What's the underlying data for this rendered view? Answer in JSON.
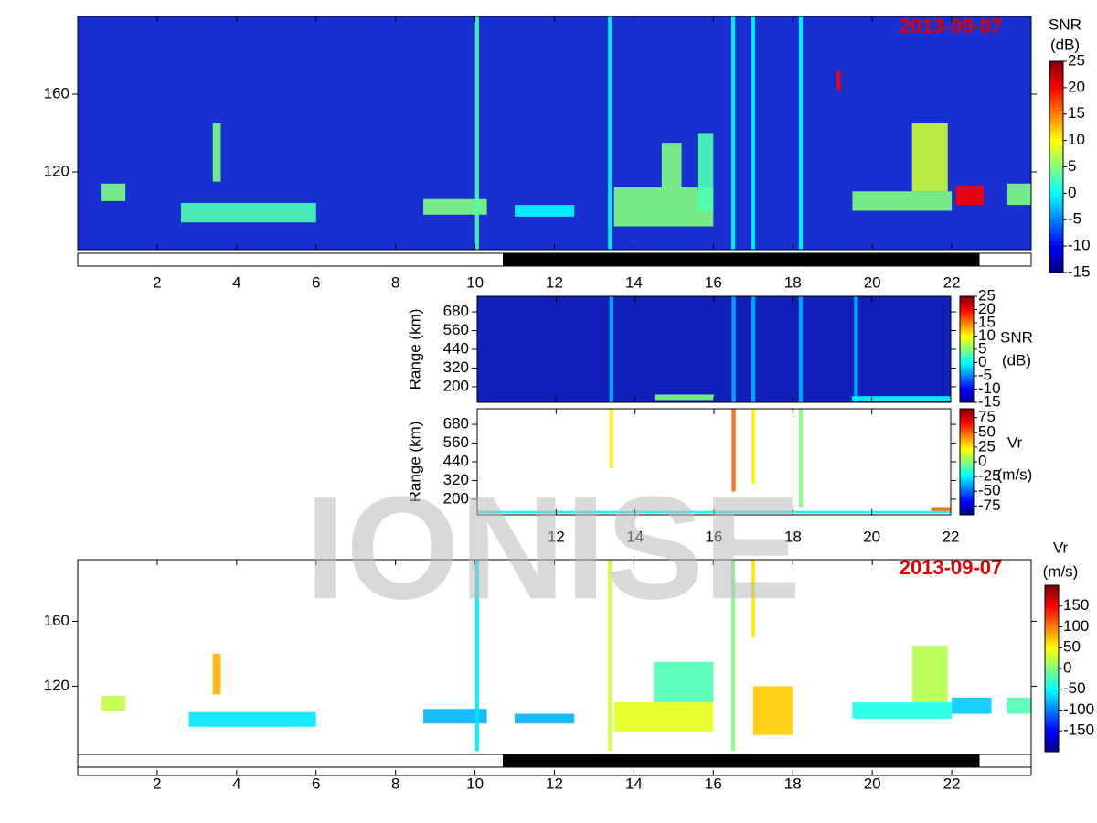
{
  "chart_data": [
    {
      "type": "heatmap",
      "date": "2013-09-07",
      "colormap": "jet",
      "background": "#1a2fd0",
      "xlim": [
        0,
        24
      ],
      "xticks": [
        2,
        4,
        6,
        8,
        10,
        12,
        14,
        16,
        18,
        20,
        22
      ],
      "xtick_labels": true,
      "ylim": [
        80,
        200
      ],
      "yticks": [
        120,
        160
      ],
      "night": [
        10.7,
        22.7
      ],
      "colorbar": {
        "label": [
          "SNR",
          "(dB)"
        ],
        "lim": [
          -15,
          25
        ],
        "ticks": [
          -15,
          -10,
          -5,
          0,
          5,
          10,
          15,
          20,
          25
        ]
      },
      "echoes": [
        {
          "x": [
            0.6,
            1.2
          ],
          "y": [
            105,
            114
          ],
          "value": 5
        },
        {
          "x": [
            2.6,
            6.0
          ],
          "y": [
            94,
            104
          ],
          "value": 3
        },
        {
          "x": [
            3.4,
            3.6
          ],
          "y": [
            115,
            145
          ],
          "value": 5
        },
        {
          "x": [
            8.7,
            10.3
          ],
          "y": [
            98,
            106
          ],
          "value": 5
        },
        {
          "x": [
            10.0,
            10.1
          ],
          "y": [
            80,
            200
          ],
          "value": 3
        },
        {
          "x": [
            11.0,
            12.5
          ],
          "y": [
            97,
            103
          ],
          "value": 0
        },
        {
          "x": [
            13.35,
            13.45
          ],
          "y": [
            80,
            200
          ],
          "value": 0
        },
        {
          "x": [
            13.5,
            16.0
          ],
          "y": [
            92,
            112
          ],
          "value": 5
        },
        {
          "x": [
            14.7,
            15.2
          ],
          "y": [
            112,
            135
          ],
          "value": 5
        },
        {
          "x": [
            15.6,
            16.0
          ],
          "y": [
            100,
            140
          ],
          "value": 3
        },
        {
          "x": [
            16.45,
            16.55
          ],
          "y": [
            80,
            200
          ],
          "value": 0
        },
        {
          "x": [
            16.95,
            17.05
          ],
          "y": [
            80,
            200
          ],
          "value": 0
        },
        {
          "x": [
            18.15,
            18.25
          ],
          "y": [
            80,
            200
          ],
          "value": 0
        },
        {
          "x": [
            19.1,
            19.2
          ],
          "y": [
            162,
            172
          ],
          "value": 20
        },
        {
          "x": [
            19.5,
            22.0
          ],
          "y": [
            100,
            110
          ],
          "value": 5
        },
        {
          "x": [
            21.0,
            21.9
          ],
          "y": [
            110,
            145
          ],
          "value": 8
        },
        {
          "x": [
            22.1,
            22.8
          ],
          "y": [
            103,
            113
          ],
          "value": 20
        },
        {
          "x": [
            23.4,
            24.0
          ],
          "y": [
            103,
            114
          ],
          "value": 5
        }
      ]
    },
    {
      "type": "heatmap",
      "colormap": "jet",
      "background": "#1020b8",
      "ylabel": "Range (km)",
      "xlim": [
        10,
        22
      ],
      "xticks": [
        12,
        14,
        16,
        18,
        20,
        22
      ],
      "xtick_labels": false,
      "ylim": [
        100,
        780
      ],
      "yticks": [
        200,
        320,
        440,
        560,
        680
      ],
      "colorbar": {
        "label": [
          "SNR",
          "(dB)"
        ],
        "lim": [
          -15,
          25
        ],
        "ticks": [
          -15,
          -10,
          -5,
          0,
          5,
          10,
          15,
          20,
          25
        ]
      },
      "echoes": [
        {
          "x": [
            13.35,
            13.45
          ],
          "y": [
            100,
            780
          ],
          "value": -3
        },
        {
          "x": [
            14.5,
            16.0
          ],
          "y": [
            115,
            150
          ],
          "value": 5
        },
        {
          "x": [
            16.45,
            16.55
          ],
          "y": [
            100,
            780
          ],
          "value": -3
        },
        {
          "x": [
            16.95,
            17.05
          ],
          "y": [
            100,
            780
          ],
          "value": -3
        },
        {
          "x": [
            18.15,
            18.25
          ],
          "y": [
            100,
            780
          ],
          "value": -3
        },
        {
          "x": [
            19.55,
            19.65
          ],
          "y": [
            100,
            780
          ],
          "value": -3
        },
        {
          "x": [
            19.5,
            22.0
          ],
          "y": [
            110,
            140
          ],
          "value": 0
        }
      ]
    },
    {
      "type": "heatmap",
      "colormap": "jet",
      "background": "#ffffff",
      "ylabel": "Range (km)",
      "xlim": [
        10,
        22
      ],
      "xticks": [
        12,
        14,
        16,
        18,
        20,
        22
      ],
      "xtick_labels": true,
      "ylim": [
        100,
        780
      ],
      "yticks": [
        200,
        320,
        440,
        560,
        680
      ],
      "colorbar": {
        "label": [
          "Vr",
          "(m/s)"
        ],
        "lim": [
          -90,
          90
        ],
        "ticks": [
          -75,
          -50,
          -25,
          0,
          25,
          50,
          75
        ]
      },
      "echoes": [
        {
          "x": [
            10.0,
            22.0
          ],
          "y": [
            110,
            125
          ],
          "value": -25
        },
        {
          "x": [
            13.35,
            13.45
          ],
          "y": [
            400,
            780
          ],
          "value": 25
        },
        {
          "x": [
            16.45,
            16.55
          ],
          "y": [
            250,
            780
          ],
          "value": 50
        },
        {
          "x": [
            16.95,
            17.05
          ],
          "y": [
            300,
            780
          ],
          "value": 25
        },
        {
          "x": [
            18.15,
            18.25
          ],
          "y": [
            150,
            780
          ],
          "value": 0
        },
        {
          "x": [
            21.5,
            22.0
          ],
          "y": [
            125,
            150
          ],
          "value": 50
        }
      ]
    },
    {
      "type": "heatmap",
      "date": "2013-09-07",
      "colormap": "jet",
      "background": "#ffffff",
      "xlim": [
        0,
        24
      ],
      "xticks": [
        2,
        4,
        6,
        8,
        10,
        12,
        14,
        16,
        18,
        20,
        22
      ],
      "xtick_labels": true,
      "ylim": [
        65,
        198
      ],
      "yticks": [
        120,
        160
      ],
      "night": [
        10.7,
        22.7
      ],
      "colorbar": {
        "label": [
          "Vr",
          "(m/s)"
        ],
        "lim": [
          -200,
          200
        ],
        "ticks": [
          -150,
          -100,
          -50,
          0,
          50,
          100,
          150
        ]
      },
      "echoes": [
        {
          "x": [
            0.6,
            1.2
          ],
          "y": [
            105,
            114
          ],
          "value": 25
        },
        {
          "x": [
            2.8,
            6.0
          ],
          "y": [
            95,
            104
          ],
          "value": -60
        },
        {
          "x": [
            3.4,
            3.6
          ],
          "y": [
            115,
            140
          ],
          "value": 80
        },
        {
          "x": [
            8.7,
            10.3
          ],
          "y": [
            97,
            106
          ],
          "value": -80
        },
        {
          "x": [
            10.0,
            10.1
          ],
          "y": [
            80,
            198
          ],
          "value": -60
        },
        {
          "x": [
            11.0,
            12.5
          ],
          "y": [
            97,
            103
          ],
          "value": -80
        },
        {
          "x": [
            13.35,
            13.45
          ],
          "y": [
            80,
            198
          ],
          "value": 30
        },
        {
          "x": [
            13.5,
            16.0
          ],
          "y": [
            92,
            110
          ],
          "value": 40
        },
        {
          "x": [
            14.5,
            16.0
          ],
          "y": [
            110,
            135
          ],
          "value": -20
        },
        {
          "x": [
            16.45,
            16.55
          ],
          "y": [
            80,
            198
          ],
          "value": 0
        },
        {
          "x": [
            16.95,
            17.05
          ],
          "y": [
            150,
            198
          ],
          "value": 60
        },
        {
          "x": [
            17.0,
            18.0
          ],
          "y": [
            90,
            120
          ],
          "value": 70
        },
        {
          "x": [
            19.5,
            22.0
          ],
          "y": [
            100,
            110
          ],
          "value": -40
        },
        {
          "x": [
            21.0,
            21.9
          ],
          "y": [
            110,
            145
          ],
          "value": 20
        },
        {
          "x": [
            22.0,
            23.0
          ],
          "y": [
            103,
            113
          ],
          "value": -70
        },
        {
          "x": [
            23.4,
            24.0
          ],
          "y": [
            103,
            113
          ],
          "value": -20
        }
      ]
    }
  ],
  "watermark": "IONISE"
}
